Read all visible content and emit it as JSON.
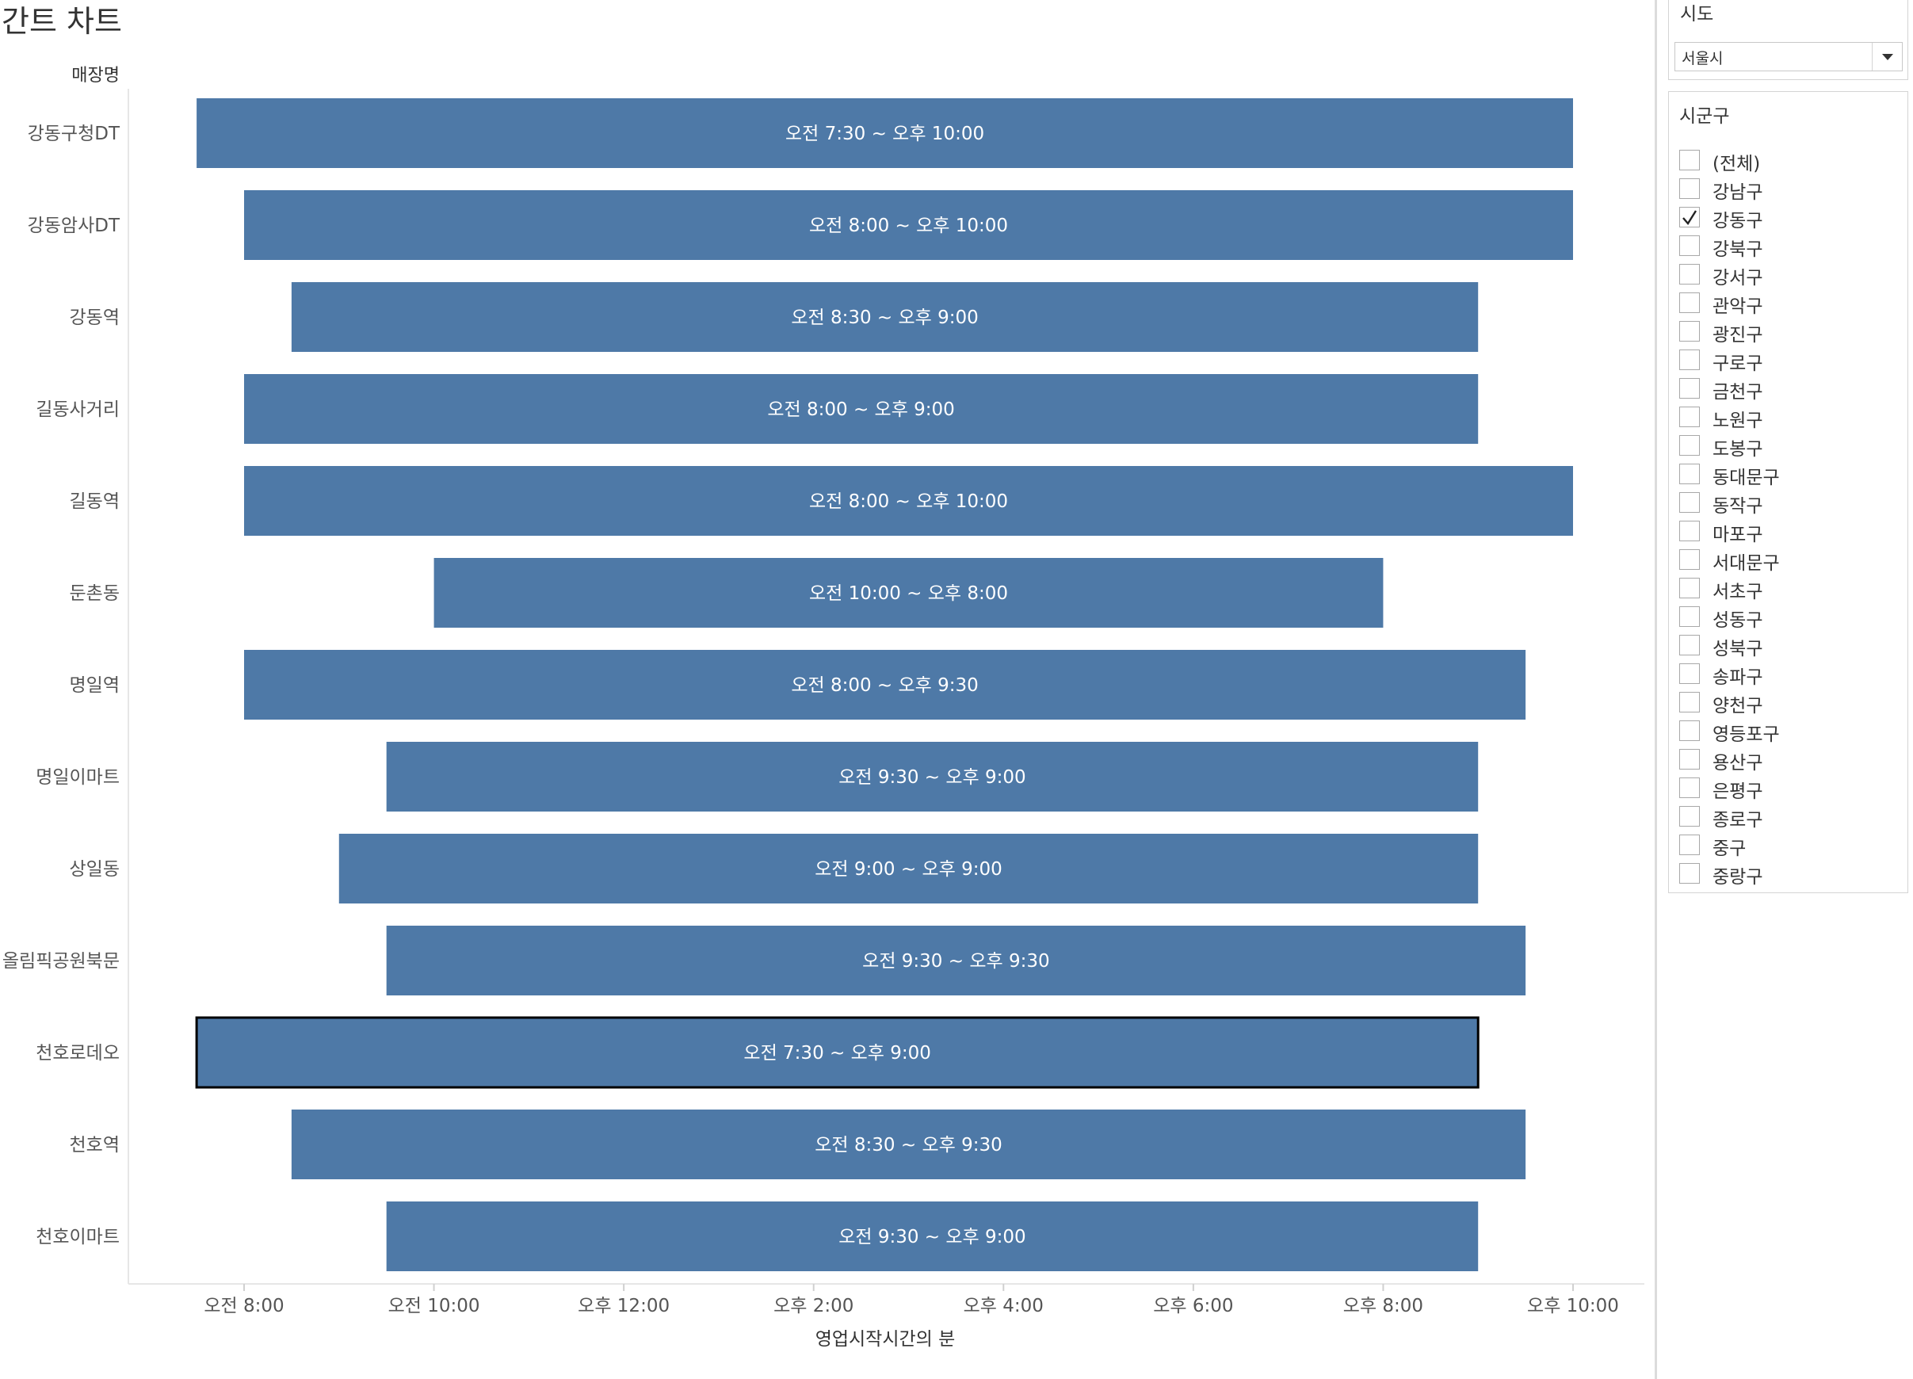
{
  "page_title": "간트 차트",
  "chart_data": {
    "type": "gantt",
    "row_header": "매장명",
    "xlabel": "영업시작시간의 분",
    "x_unit": "minutes_since_midnight",
    "xlim": [
      420,
      1380
    ],
    "x_ticks": [
      {
        "value": 480,
        "label": "오전 8:00"
      },
      {
        "value": 600,
        "label": "오전 10:00"
      },
      {
        "value": 720,
        "label": "오후 12:00"
      },
      {
        "value": 840,
        "label": "오후 2:00"
      },
      {
        "value": 960,
        "label": "오후 4:00"
      },
      {
        "value": 1080,
        "label": "오후 6:00"
      },
      {
        "value": 1200,
        "label": "오후 8:00"
      },
      {
        "value": 1320,
        "label": "오후 10:00"
      }
    ],
    "bar_color": "#4e79a7",
    "rows": [
      {
        "name": "강동구청DT",
        "start": 450,
        "end": 1320,
        "label": "오전 7:30 ~ 오후 10:00",
        "selected": false
      },
      {
        "name": "강동암사DT",
        "start": 480,
        "end": 1320,
        "label": "오전 8:00 ~ 오후 10:00",
        "selected": false
      },
      {
        "name": "강동역",
        "start": 510,
        "end": 1260,
        "label": "오전 8:30 ~ 오후 9:00",
        "selected": false
      },
      {
        "name": "길동사거리",
        "start": 480,
        "end": 1260,
        "label": "오전 8:00 ~ 오후 9:00",
        "selected": false
      },
      {
        "name": "길동역",
        "start": 480,
        "end": 1320,
        "label": "오전 8:00 ~ 오후 10:00",
        "selected": false
      },
      {
        "name": "둔촌동",
        "start": 600,
        "end": 1200,
        "label": "오전 10:00 ~ 오후 8:00",
        "selected": false
      },
      {
        "name": "명일역",
        "start": 480,
        "end": 1290,
        "label": "오전 8:00 ~ 오후 9:30",
        "selected": false
      },
      {
        "name": "명일이마트",
        "start": 570,
        "end": 1260,
        "label": "오전 9:30 ~ 오후 9:00",
        "selected": false
      },
      {
        "name": "상일동",
        "start": 540,
        "end": 1260,
        "label": "오전 9:00 ~ 오후 9:00",
        "selected": false
      },
      {
        "name": "올림픽공원북문",
        "start": 570,
        "end": 1290,
        "label": "오전 9:30 ~ 오후 9:30",
        "selected": false
      },
      {
        "name": "천호로데오",
        "start": 450,
        "end": 1260,
        "label": "오전 7:30 ~ 오후 9:00",
        "selected": true
      },
      {
        "name": "천호역",
        "start": 510,
        "end": 1290,
        "label": "오전 8:30 ~ 오후 9:30",
        "selected": false
      },
      {
        "name": "천호이마트",
        "start": 570,
        "end": 1260,
        "label": "오전 9:30 ~ 오후 9:00",
        "selected": false
      }
    ]
  },
  "filters": {
    "sido": {
      "title": "시도",
      "value": "서울시"
    },
    "sigungu": {
      "title": "시군구",
      "items": [
        {
          "label": "(전체)",
          "checked": false
        },
        {
          "label": "강남구",
          "checked": false
        },
        {
          "label": "강동구",
          "checked": true
        },
        {
          "label": "강북구",
          "checked": false
        },
        {
          "label": "강서구",
          "checked": false
        },
        {
          "label": "관악구",
          "checked": false
        },
        {
          "label": "광진구",
          "checked": false
        },
        {
          "label": "구로구",
          "checked": false
        },
        {
          "label": "금천구",
          "checked": false
        },
        {
          "label": "노원구",
          "checked": false
        },
        {
          "label": "도봉구",
          "checked": false
        },
        {
          "label": "동대문구",
          "checked": false
        },
        {
          "label": "동작구",
          "checked": false
        },
        {
          "label": "마포구",
          "checked": false
        },
        {
          "label": "서대문구",
          "checked": false
        },
        {
          "label": "서초구",
          "checked": false
        },
        {
          "label": "성동구",
          "checked": false
        },
        {
          "label": "성북구",
          "checked": false
        },
        {
          "label": "송파구",
          "checked": false
        },
        {
          "label": "양천구",
          "checked": false
        },
        {
          "label": "영등포구",
          "checked": false
        },
        {
          "label": "용산구",
          "checked": false
        },
        {
          "label": "은평구",
          "checked": false
        },
        {
          "label": "종로구",
          "checked": false
        },
        {
          "label": "중구",
          "checked": false
        },
        {
          "label": "중랑구",
          "checked": false
        }
      ]
    }
  }
}
